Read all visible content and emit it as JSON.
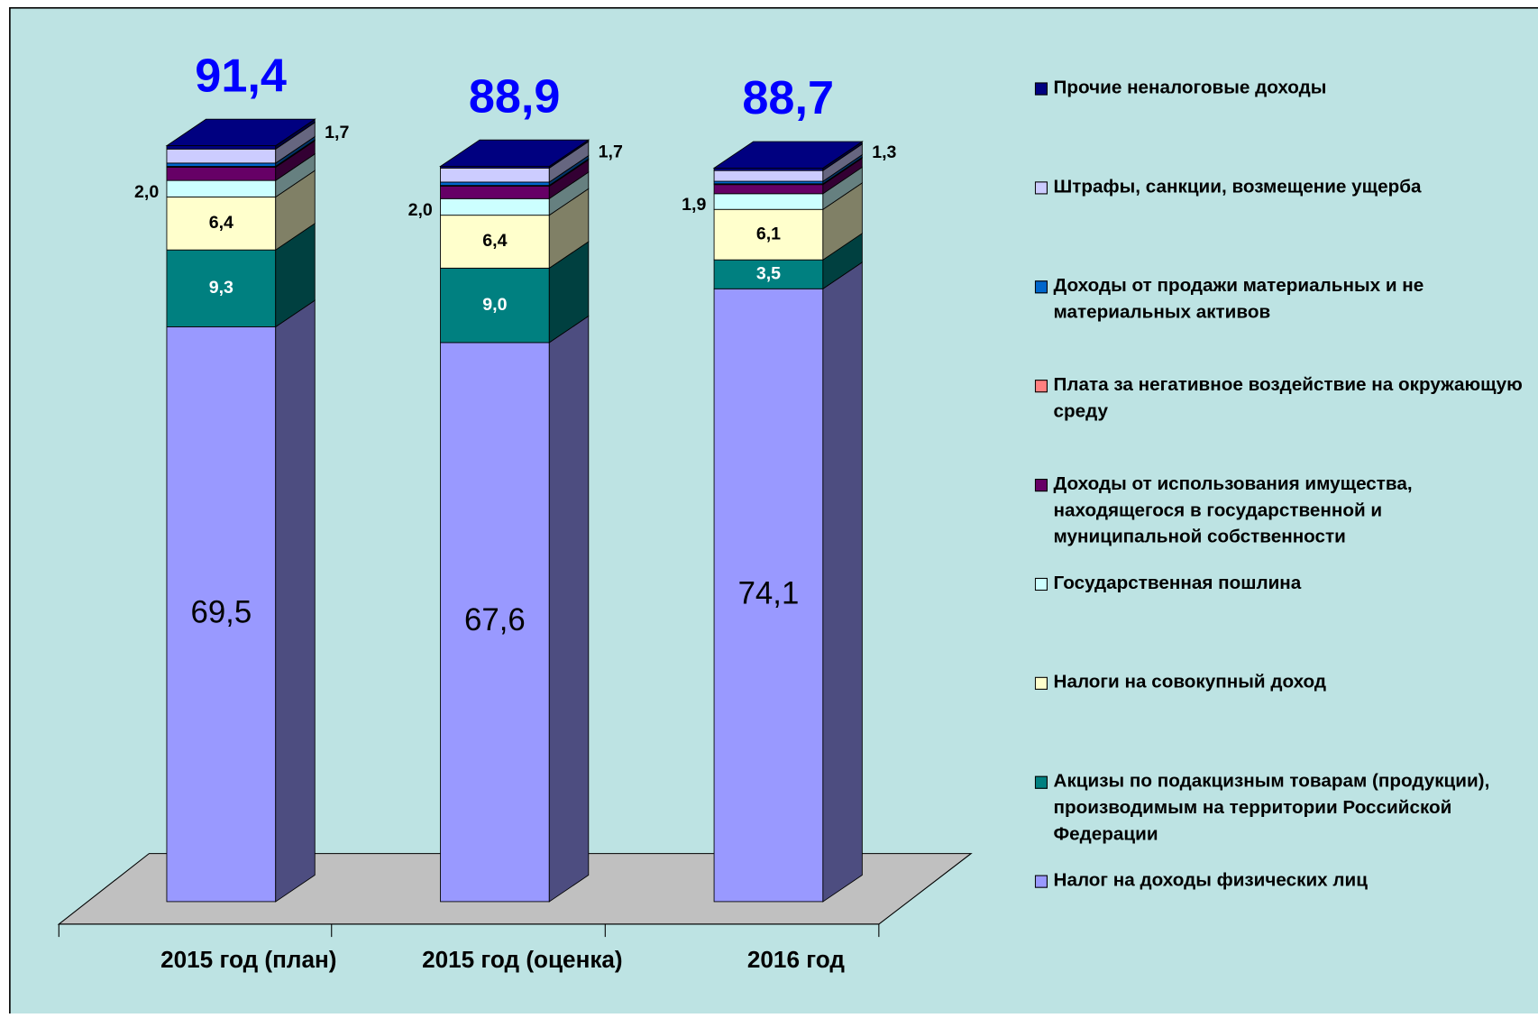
{
  "chart_data": {
    "type": "bar3d_stacked",
    "categories": [
      "2015 год (план)",
      "2015 год (оценка)",
      "2016 год"
    ],
    "series": [
      {
        "name": "Налог на доходы физических лиц",
        "color": "#9999ff",
        "values": [
          69.5,
          67.6,
          74.1
        ],
        "value_labels": [
          "69,5",
          "67,6",
          "74,1"
        ]
      },
      {
        "name": "Акцизы по подакцизным товарам (продукции), производимым на территории Российской Федерации",
        "color": "#008080",
        "values": [
          9.3,
          9.0,
          3.5
        ],
        "value_labels": [
          "9,3",
          "9,0",
          "3,5"
        ]
      },
      {
        "name": "Налоги на совокупный доход",
        "color": "#ffffcc",
        "values": [
          6.4,
          6.4,
          6.1
        ],
        "value_labels": [
          "6,4",
          "6,4",
          "6,1"
        ]
      },
      {
        "name": "Государственная пошлина",
        "color": "#ccffff",
        "values": [
          2.0,
          2.0,
          1.9
        ],
        "value_labels": [
          "2,0",
          "2,0",
          "1,9"
        ]
      },
      {
        "name": "Доходы от использования имущества, находящегося в государственной и муниципальной собственности",
        "color": "#660066",
        "values": [
          1.6,
          1.5,
          1.1
        ]
      },
      {
        "name": "Плата за негативное воздействие на окружающую среду",
        "color": "#ff8080",
        "values": [
          0.1,
          0.1,
          0.1
        ]
      },
      {
        "name": "Доходы от продажи материальных и не материальных активов",
        "color": "#0066cc",
        "values": [
          0.4,
          0.4,
          0.3
        ]
      },
      {
        "name": "Штрафы, санкции, возмещение ущерба",
        "color": "#ccccff",
        "values": [
          1.7,
          1.7,
          1.3
        ],
        "value_labels": [
          "1,7",
          "1,7",
          "1,3"
        ]
      },
      {
        "name": "Прочие неналоговые доходы",
        "color": "#000080",
        "values": [
          0.4,
          0.2,
          0.3
        ]
      }
    ],
    "totals": [
      91.4,
      88.9,
      88.7
    ],
    "total_labels": [
      "91,4",
      "88,9",
      "88,7"
    ],
    "totals_color": "#0000ff"
  }
}
